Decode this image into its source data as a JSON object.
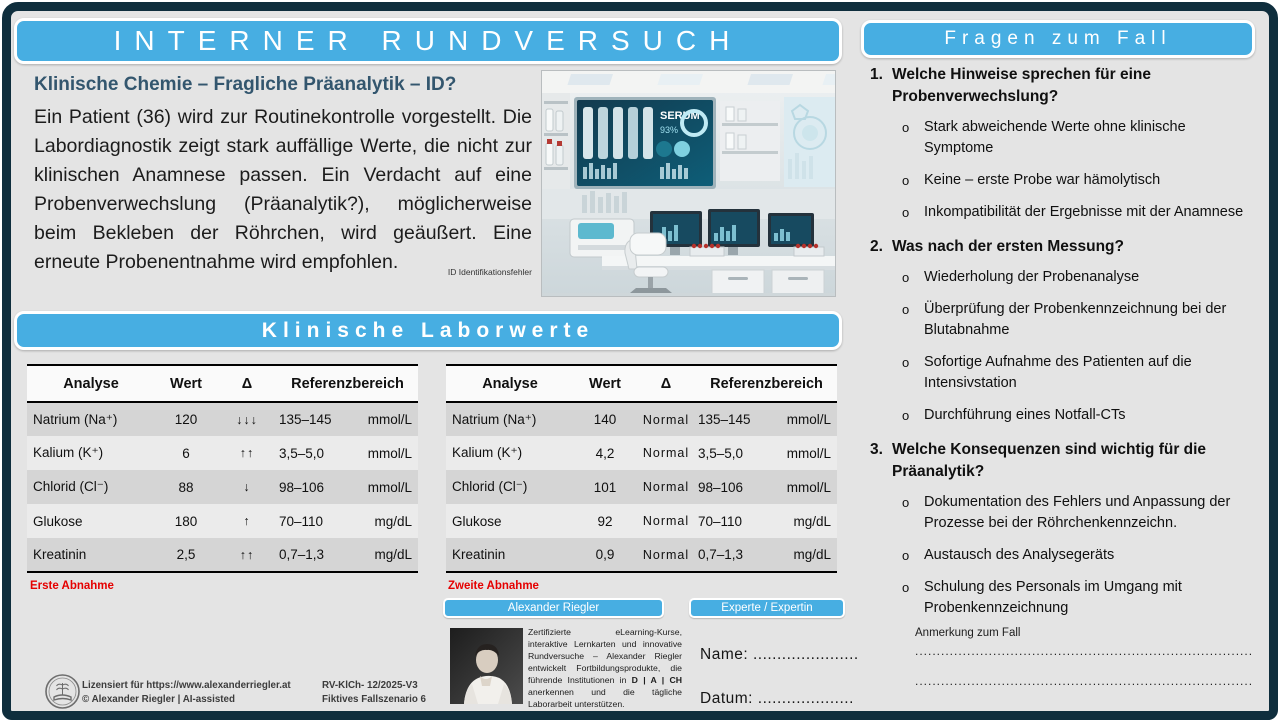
{
  "colors": {
    "accent": "#47aee2",
    "frame": "#0f2e3d",
    "heading": "#33566e",
    "alert": "#e50000"
  },
  "header": {
    "title": "INTERNER RUNDVERSUCH"
  },
  "case": {
    "heading": "Klinische Chemie – Fragliche Präanalytik – ID?",
    "body": "Ein Patient (36) wird zur Routinekontrolle vorgestellt. Die Labordiagnostik zeigt stark auffällige Werte, die nicht zur klinischen Anamnese passen. Ein Verdacht auf eine Probenverwechslung (Präanalytik?), möglicherweise beim Bekleben der Röhrchen, wird geäußert. Eine erneute Probenentnahme wird empfohlen.",
    "footnote": "ID Identifikationsfehler"
  },
  "lab_image": {
    "screen_label": "SERUM",
    "screen_value": "93%"
  },
  "labs": {
    "banner": "Klinische Laborwerte",
    "tables": [
      {
        "caption": "Erste Abnahme",
        "headers": [
          "Analyse",
          "Wert",
          "Δ",
          "Referenzbereich"
        ],
        "rows": [
          {
            "analyte": "Natrium (Na⁺)",
            "value": "120",
            "delta": "↓↓↓",
            "ref": "135–145",
            "unit": "mmol/L"
          },
          {
            "analyte": "Kalium (K⁺)",
            "value": "6",
            "delta": "↑↑",
            "ref": "3,5–5,0",
            "unit": "mmol/L"
          },
          {
            "analyte": "Chlorid (Cl⁻)",
            "value": "88",
            "delta": "↓",
            "ref": "98–106",
            "unit": "mmol/L"
          },
          {
            "analyte": "Glukose",
            "value": "180",
            "delta": "↑",
            "ref": "70–110",
            "unit": "mg/dL"
          },
          {
            "analyte": "Kreatinin",
            "value": "2,5",
            "delta": "↑↑",
            "ref": "0,7–1,3",
            "unit": "mg/dL"
          }
        ]
      },
      {
        "caption": "Zweite Abnahme",
        "headers": [
          "Analyse",
          "Wert",
          "Δ",
          "Referenzbereich"
        ],
        "rows": [
          {
            "analyte": "Natrium (Na⁺)",
            "value": "140",
            "delta": "Normal",
            "ref": "135–145",
            "unit": "mmol/L"
          },
          {
            "analyte": "Kalium (K⁺)",
            "value": "4,2",
            "delta": "Normal",
            "ref": "3,5–5,0",
            "unit": "mmol/L"
          },
          {
            "analyte": "Chlorid (Cl⁻)",
            "value": "101",
            "delta": "Normal",
            "ref": "98–106",
            "unit": "mmol/L"
          },
          {
            "analyte": "Glukose",
            "value": "92",
            "delta": "Normal",
            "ref": "70–110",
            "unit": "mg/dL"
          },
          {
            "analyte": "Kreatinin",
            "value": "0,9",
            "delta": "Normal",
            "ref": "0,7–1,3",
            "unit": "mg/dL"
          }
        ]
      }
    ]
  },
  "questions": {
    "banner": "Fragen zum Fall",
    "bullet": "o",
    "items": [
      {
        "num": "1.",
        "title": "Welche Hinweise sprechen für eine Probenverwechslung?",
        "options": [
          "Stark abweichende Werte ohne klinische Symptome",
          "Keine – erste Probe war hämolytisch",
          "Inkompatibilität der Ergebnisse mit der Anamnese"
        ]
      },
      {
        "num": "2.",
        "title": "Was nach der ersten Messung?",
        "options": [
          "Wiederholung der Probenanalyse",
          "Überprüfung der Probenkennzeichnung bei der Blutabnahme",
          "Sofortige Aufnahme des Patienten auf die Intensivstation",
          "Durchführung eines Notfall-CTs"
        ]
      },
      {
        "num": "3.",
        "title": "Welche Konsequenzen sind wichtig für die Präanalytik?",
        "options": [
          "Dokumentation des Fehlers und Anpassung der Prozesse bei der Röhrchenkennzeichn.",
          "Austausch des Analysegeräts",
          "Schulung des Personals im Umgang mit Probenkennzeichnung"
        ]
      }
    ],
    "note_label": "Anmerkung zum Fall",
    "dotted_line": ".........................................................................................................."
  },
  "expert": {
    "name_badge": "Alexander Riegler",
    "role_badge": "Experte / Expertin",
    "bio_1": "Zertifizierte eLearning-Kurse, interaktive Lernkarten und innovative Rundversuche – Alexander Riegler entwickelt Fortbildungsprodukte, die führende Institutionen in ",
    "bio_bold": "D | A | CH",
    "bio_2": " anerkennen und die tägliche Laborarbeit unterstützen.",
    "name_label": "Name: ......................",
    "date_label": "Datum: ...................."
  },
  "footer": {
    "license_line1": "Lizensiert für https://www.alexanderriegler.at",
    "license_line2": "© Alexander Riegler | AI-assisted",
    "code_line1": "RV-KlCh- 12/2025-V3",
    "code_line2": "Fiktives Fallszenario 6"
  }
}
